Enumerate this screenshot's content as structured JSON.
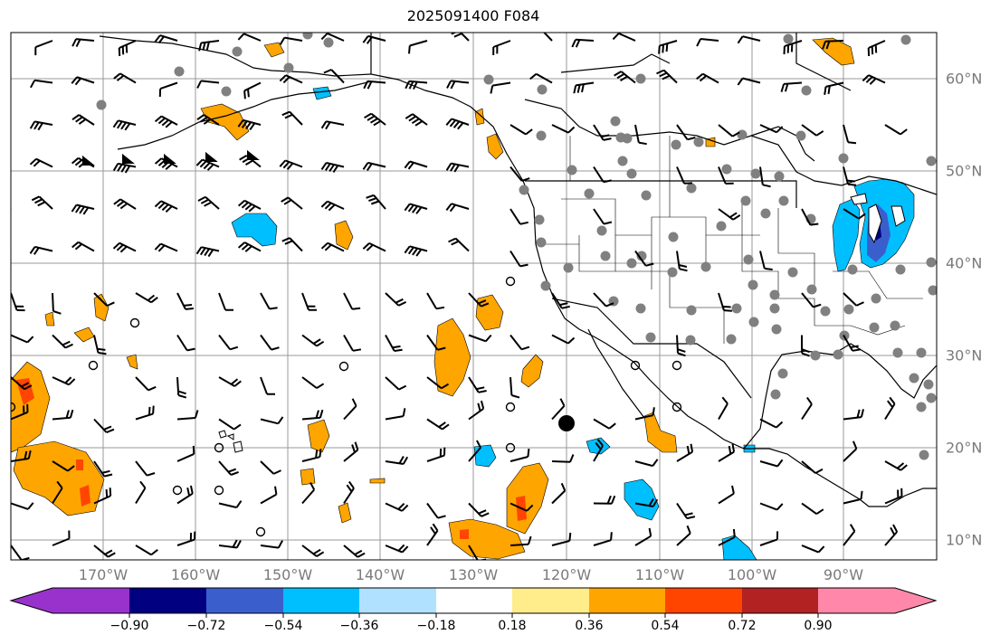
{
  "title": "2025091400 F084",
  "map": {
    "lon_labels": [
      "170°W",
      "160°W",
      "150°W",
      "140°W",
      "130°W",
      "120°W",
      "110°W",
      "100°W",
      "90°W"
    ],
    "lat_labels": [
      "60°N",
      "50°N",
      "40°N",
      "30°N",
      "20°N",
      "10°N"
    ],
    "label_color": "#7a7a7a",
    "grid_color": "#9a9a9a",
    "point_marker_color": "#808080",
    "storm_marker": "filled black circle"
  },
  "colorbar": {
    "ticks": [
      "−0.90",
      "−0.72",
      "−0.54",
      "−0.36",
      "−0.18",
      "0.18",
      "0.36",
      "0.54",
      "0.72",
      "0.90"
    ],
    "colors": [
      "#9932cc",
      "#000080",
      "#3a5fcd",
      "#00bfff",
      "#b0e2ff",
      "#ffffff",
      "#ffec8b",
      "#ffa500",
      "#ff4500",
      "#b22222",
      "#ff88aa"
    ]
  },
  "fills": {
    "positive_low": "#ffa500",
    "positive_mid": "#ff4500",
    "negative_low": "#00bfff",
    "negative_mid": "#3a5fcd",
    "negative_high": "#000080"
  }
}
